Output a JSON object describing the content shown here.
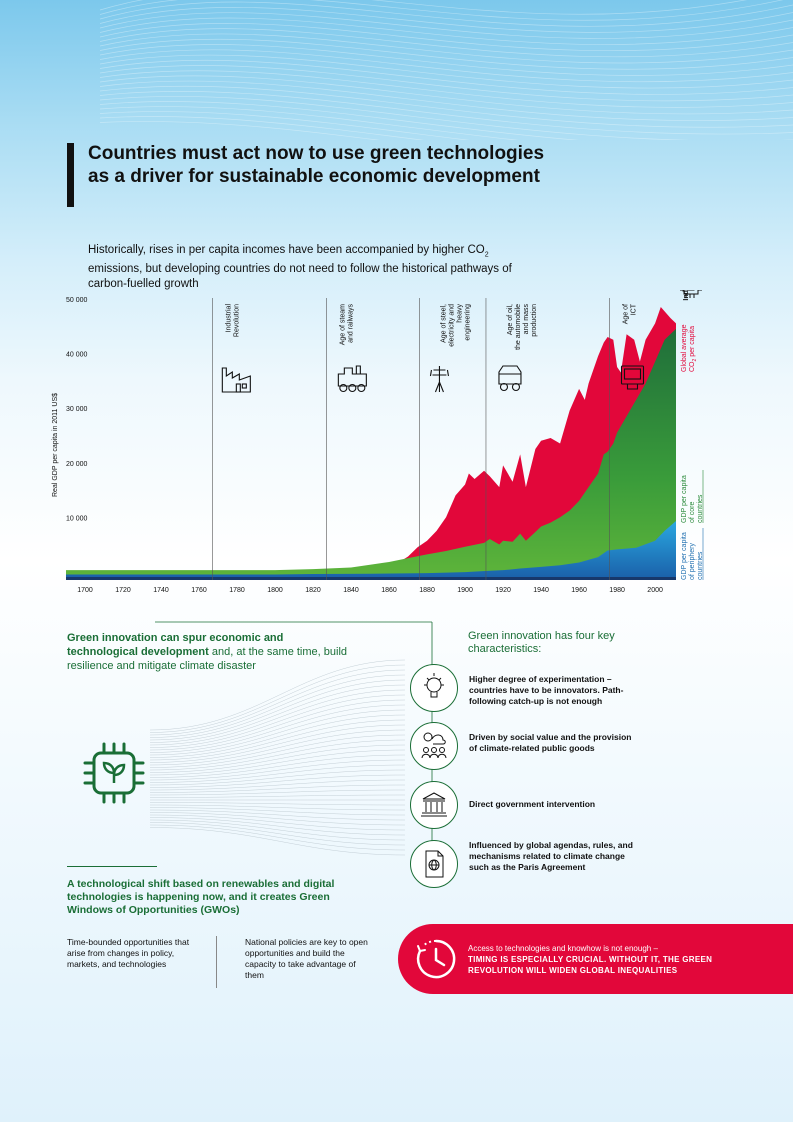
{
  "title": "Countries must act now to use green technologies as a driver for sustainable economic development",
  "intro": {
    "text": "Historically, rises in per capita incomes have been accompanied by higher CO",
    "sub": "2",
    "text2": " emissions, but developing countries do not need to follow the historical pathways of carbon-fuelled growth"
  },
  "chart_data": {
    "type": "area",
    "ylabel": "Real GDP per capita in 2011 US$",
    "xlim": [
      1690,
      2011
    ],
    "ylim": [
      0,
      50000
    ],
    "y_ticks": [
      {
        "value": 10000,
        "label": "10 000"
      },
      {
        "value": 20000,
        "label": "20 000"
      },
      {
        "value": 30000,
        "label": "30 000"
      },
      {
        "value": 40000,
        "label": "40 000"
      },
      {
        "value": 50000,
        "label": "50 000"
      }
    ],
    "x_ticks": [
      1700,
      1720,
      1740,
      1760,
      1780,
      1800,
      1820,
      1840,
      1860,
      1880,
      1900,
      1920,
      1940,
      1960,
      1980,
      2000
    ],
    "series": [
      {
        "name": "Global average CO2 per capita",
        "name_main": "Global average",
        "name_line2": "CO",
        "name_sub": "2",
        "name_after": " per capita",
        "color": "#e2073a",
        "x": [
          1690,
          1840,
          1850,
          1855,
          1860,
          1865,
          1870,
          1875,
          1880,
          1885,
          1890,
          1895,
          1900,
          1902,
          1905,
          1910,
          1913,
          1918,
          1920,
          1925,
          1929,
          1932,
          1937,
          1940,
          1945,
          1950,
          1955,
          1960,
          1963,
          1965,
          1970,
          1973,
          1975,
          1978,
          1980,
          1982,
          1985,
          1989,
          1992,
          1995,
          2000,
          2003,
          2008,
          2011
        ],
        "values": [
          0,
          0,
          200,
          1200,
          2300,
          3200,
          4300,
          6000,
          7200,
          9000,
          11500,
          15500,
          17500,
          19500,
          18500,
          20000,
          19000,
          17000,
          21000,
          18000,
          23000,
          17000,
          24000,
          25500,
          26000,
          25000,
          31000,
          35000,
          33000,
          36000,
          41000,
          43500,
          44500,
          44000,
          39000,
          38000,
          45000,
          44000,
          40000,
          44000,
          47000,
          50000,
          48000,
          47000
        ]
      },
      {
        "name": "GDP per capita of core countries",
        "name_line1": "GDP per capita",
        "name_line2": "of core",
        "name_line3": "countries",
        "color": "#3a9c3a",
        "x": [
          1690,
          1800,
          1820,
          1840,
          1850,
          1860,
          1870,
          1880,
          1890,
          1900,
          1910,
          1913,
          1918,
          1920,
          1925,
          1929,
          1932,
          1937,
          1940,
          1945,
          1950,
          1955,
          1960,
          1963,
          1965,
          1970,
          1973,
          1975,
          1978,
          1980,
          1985,
          1990,
          1995,
          2000,
          2005,
          2008,
          2011
        ],
        "values": [
          1800,
          1800,
          2000,
          2300,
          2800,
          3300,
          4000,
          4700,
          5300,
          6100,
          6800,
          7500,
          6500,
          7200,
          7000,
          8500,
          7200,
          8800,
          9800,
          10500,
          11500,
          12700,
          14500,
          16000,
          17000,
          19500,
          23000,
          23500,
          25000,
          27000,
          30000,
          33000,
          36000,
          40000,
          44000,
          45000,
          46000
        ]
      },
      {
        "name": "GDP per capita of periphery countries",
        "name_line1": "GDP per capita",
        "name_line2": "of periphery",
        "name_line3": "countries",
        "color": "#1f9ad6",
        "x": [
          1690,
          1800,
          1820,
          1850,
          1880,
          1900,
          1913,
          1920,
          1929,
          1940,
          1950,
          1960,
          1970,
          1975,
          1980,
          1990,
          2000,
          2005,
          2011
        ],
        "values": [
          1000,
          1000,
          1100,
          1150,
          1250,
          1450,
          1700,
          1800,
          2100,
          2400,
          2700,
          3200,
          4200,
          5400,
          5600,
          5900,
          7200,
          9000,
          10800
        ]
      }
    ],
    "eras": [
      {
        "year": 1767,
        "label": "Industrial\nRevolution",
        "icon": "factory-icon"
      },
      {
        "year": 1827,
        "label": "Age of steam\nand railways",
        "icon": "locomotive-icon"
      },
      {
        "year": 1876,
        "label": "Age of steel,\nelectricity and\nheavy\nengineering",
        "icon": "power-pylon-icon"
      },
      {
        "year": 1911,
        "label": "Age of oil,\nthe automobile\nand mass\nproduction",
        "icon": "car-icon"
      },
      {
        "year": 1976,
        "label": "Age of\nICT",
        "icon": "computer-icon"
      }
    ],
    "industry": {
      "label": "Industry\n4.0",
      "icon": "chip-icon"
    }
  },
  "green_innovation": {
    "title_bold": "Green innovation can spur economic and technological development",
    "title_rest": " and, at the same time, build resilience and mitigate climate disaster",
    "right_title": "Green innovation has four key characteristics:",
    "characteristics": [
      {
        "text": "Higher degree of experimentation – countries have to be innovators. Path-following catch-up is not enough",
        "icon": "gear-bulb-icon"
      },
      {
        "text": "Driven by social value and the provision of climate-related public goods",
        "icon": "people-climate-icon"
      },
      {
        "text": "Direct government intervention",
        "icon": "government-building-icon"
      },
      {
        "text": "Influenced by global agendas, rules, and mechanisms related to climate change such as the Paris Agreement",
        "icon": "globe-document-icon"
      }
    ]
  },
  "shift": {
    "title": "A technological shift based on renewables and digital technologies is happening now, and it creates Green Windows of Opportunities (GWOs)",
    "col1": "Time-bounded opportunities that arise from changes in policy, markets, and technologies",
    "col2": "National policies are key to open opportunities and build the capacity to take advantage of them"
  },
  "timing": {
    "text": "Access to technologies and knowhow is not enough –",
    "caps": "TIMING IS ESPECIALLY CRUCIAL. WITHOUT IT, THE GREEN REVOLUTION WILL WIDEN GLOBAL INEQUALITIES",
    "icon": "clock-icon"
  }
}
